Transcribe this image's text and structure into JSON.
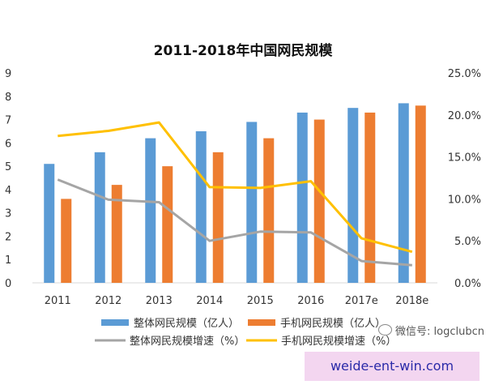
{
  "chart_data": {
    "type": "bar",
    "title": "2011-2018年中国网民规模",
    "categories": [
      "2011",
      "2012",
      "2013",
      "2014",
      "2015",
      "2016",
      "2017e",
      "2018e"
    ],
    "series": [
      {
        "name": "整体网民规模（亿人）",
        "kind": "bar",
        "axis": "left",
        "color": "#5b9bd5",
        "values": [
          5.1,
          5.6,
          6.2,
          6.5,
          6.9,
          7.3,
          7.5,
          7.7
        ]
      },
      {
        "name": "手机网民规模（亿人）",
        "kind": "bar",
        "axis": "left",
        "color": "#ed7d31",
        "values": [
          3.6,
          4.2,
          5.0,
          5.6,
          6.2,
          7.0,
          7.3,
          7.6
        ]
      },
      {
        "name": "整体网民规模增速（%）",
        "kind": "line",
        "axis": "right",
        "color": "#a5a5a5",
        "values": [
          12.3,
          9.9,
          9.6,
          5.0,
          6.1,
          6.0,
          2.6,
          2.1
        ]
      },
      {
        "name": "手机网民规模增速（%）",
        "kind": "line",
        "axis": "right",
        "color": "#ffc000",
        "values": [
          17.5,
          18.1,
          19.1,
          11.4,
          11.3,
          12.1,
          5.3,
          3.7
        ]
      }
    ],
    "yleft": {
      "ylim": [
        0,
        9
      ],
      "ticks": [
        "0",
        "1",
        "2",
        "3",
        "4",
        "5",
        "6",
        "7",
        "8",
        "9"
      ]
    },
    "yright": {
      "ylim": [
        0,
        25
      ],
      "ticks": [
        "0.0%",
        "5.0%",
        "10.0%",
        "15.0%",
        "20.0%",
        "25.0%"
      ]
    },
    "grid": false,
    "legend": "bottom"
  },
  "watermark": {
    "text": "微信号: logclubcn",
    "icon": "wechat-icon"
  },
  "site_label": "weide-ent-win.com"
}
